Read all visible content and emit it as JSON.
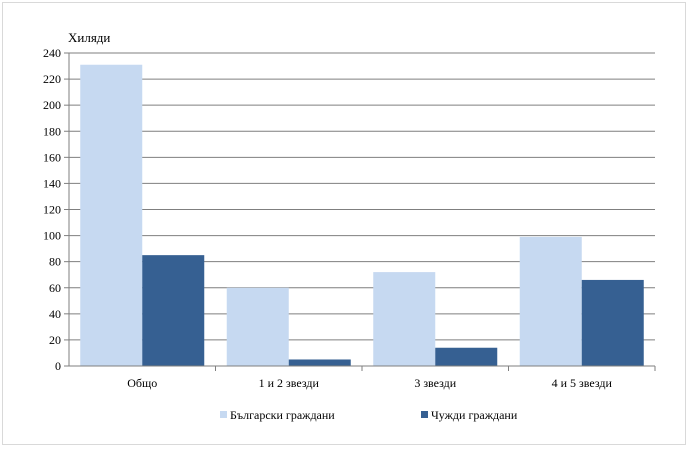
{
  "chart_data": {
    "type": "bar",
    "ylabel": "Хиляди",
    "categories": [
      "Общо",
      "1 и 2 звезди",
      "3 звезди",
      "4 и 5 звезди"
    ],
    "series": [
      {
        "name": "Български граждани",
        "color": "#c6d9f1",
        "values": [
          231,
          60,
          72,
          99
        ]
      },
      {
        "name": "Чужди граждани",
        "color": "#366092",
        "values": [
          85,
          5,
          14,
          66
        ]
      }
    ],
    "ylim": [
      0,
      240
    ],
    "yticks": [
      0,
      20,
      40,
      60,
      80,
      100,
      120,
      140,
      160,
      180,
      200,
      220,
      240
    ],
    "grid": true,
    "legend": "bottom"
  }
}
